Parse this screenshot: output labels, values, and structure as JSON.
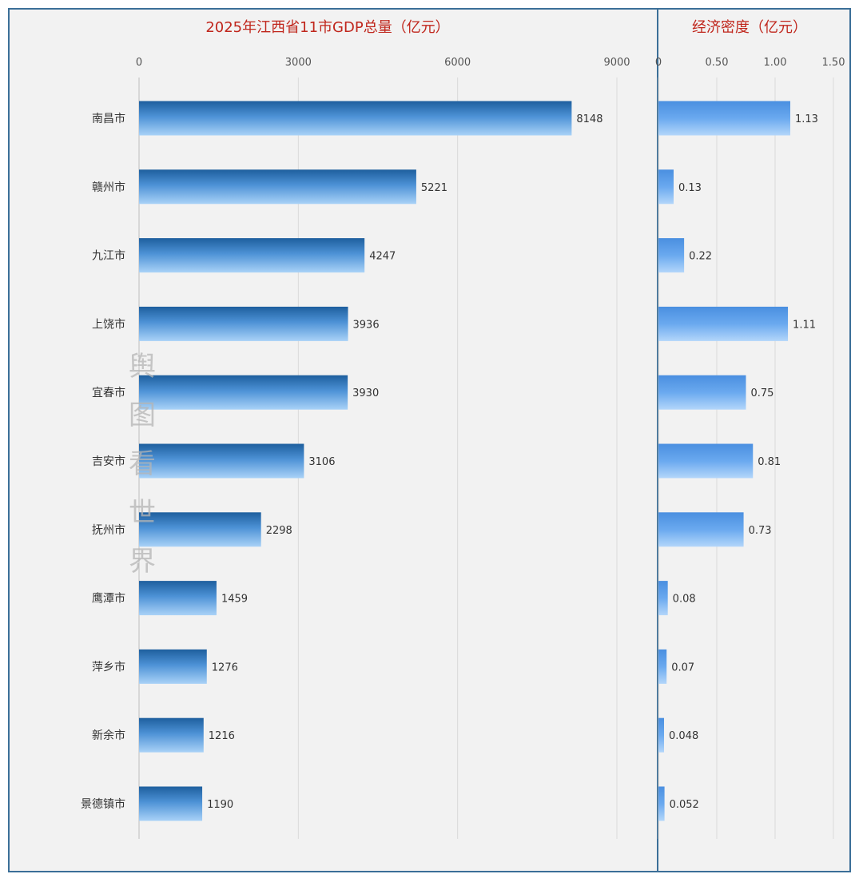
{
  "chart_data": [
    {
      "type": "bar",
      "orientation": "horizontal",
      "title": "2025年江西省11市GDP总量（亿元）",
      "categories": [
        "南昌市",
        "赣州市",
        "九江市",
        "上饶市",
        "宜春市",
        "吉安市",
        "抚州市",
        "鹰潭市",
        "萍乡市",
        "新余市",
        "景德镇市"
      ],
      "values": [
        8148,
        5221,
        4247,
        3936,
        3930,
        3106,
        2298,
        1459,
        1276,
        1216,
        1190
      ],
      "value_labels": [
        "8148",
        "5221",
        "4247",
        "3936",
        "3930",
        "3106",
        "2298",
        "1459",
        "1276",
        "1216",
        "1190"
      ],
      "xlim": [
        0,
        9000
      ],
      "ticks": [
        0,
        3000,
        6000,
        9000
      ],
      "tick_labels": [
        "0",
        "3000",
        "6000",
        "9000"
      ],
      "axis_position": "top",
      "grid": true,
      "bar_color": "#4a90d9"
    },
    {
      "type": "bar",
      "orientation": "horizontal",
      "title": "经济密度（亿元）",
      "categories": [
        "南昌市",
        "赣州市",
        "九江市",
        "上饶市",
        "宜春市",
        "吉安市",
        "抚州市",
        "鹰潭市",
        "萍乡市",
        "新余市",
        "景德镇市"
      ],
      "values": [
        1.13,
        0.13,
        0.22,
        1.11,
        0.75,
        0.81,
        0.73,
        0.08,
        0.07,
        0.048,
        0.052
      ],
      "value_labels": [
        "1.13",
        "0.13",
        "0.22",
        "1.11",
        "0.75",
        "0.81",
        "0.73",
        "0.08",
        "0.07",
        "0.048",
        "0.052"
      ],
      "xlim": [
        0,
        1.5
      ],
      "ticks": [
        0,
        0.5,
        1.0,
        1.5
      ],
      "tick_labels": [
        "0",
        "0.50",
        "1.00",
        "1.50"
      ],
      "axis_position": "top",
      "grid": true,
      "bar_color": "#6aaaf0"
    }
  ],
  "watermark": "舆图看世界",
  "colors": {
    "title": "#c0261c",
    "frame": "#3b6f98",
    "background": "#f2f2f2"
  }
}
